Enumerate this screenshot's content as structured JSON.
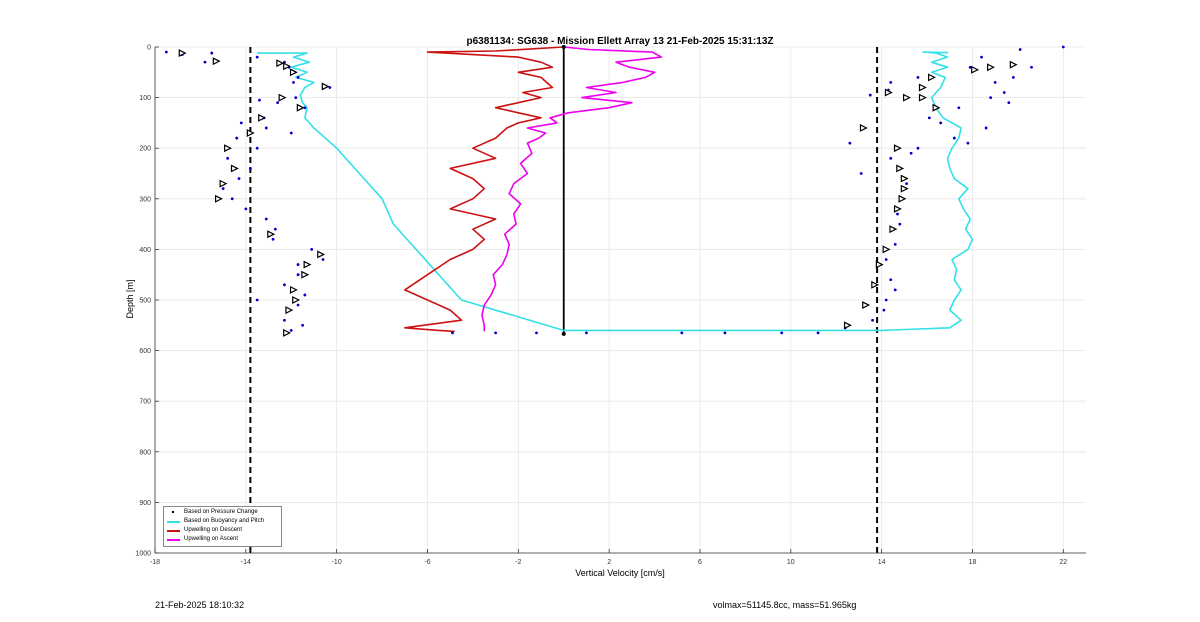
{
  "chart_data": {
    "type": "scatter",
    "title": "p6381134: SG638 - Mission Ellett Array 13 21-Feb-2025 15:31:13Z",
    "xlabel": "Vertical Velocity [cm/s]",
    "ylabel": "Depth [m]",
    "xlim": [
      -18,
      23
    ],
    "ylim": [
      1000,
      0
    ],
    "y_reversed": true,
    "x_ticks": [
      "-18",
      "-14",
      "-10",
      "-6",
      "-2",
      "2",
      "6",
      "10",
      "14",
      "18",
      "22"
    ],
    "y_ticks": [
      "0",
      "100",
      "200",
      "300",
      "400",
      "500",
      "600",
      "700",
      "800",
      "900",
      "1000"
    ],
    "grid": true,
    "legend_position": "bottom-left",
    "reference_lines": [
      {
        "style": "dashed",
        "x": -13.8
      },
      {
        "style": "dashed",
        "x": 13.8
      },
      {
        "style": "solid",
        "x": 0,
        "y_range": [
          0,
          567
        ]
      }
    ],
    "series": [
      {
        "name": "Based on Pressure Change",
        "style": "dots",
        "color": "#0000cc",
        "x": [
          -17.5,
          -15.5,
          -16.8,
          -13.5,
          -15.8,
          -12.3,
          -12.1,
          -11.7,
          -11.9,
          -10.3,
          -11.8,
          -13.4,
          -12.6,
          -11.4,
          -13.2,
          -14.2,
          -13.1,
          -12.0,
          -14.4,
          -13.5,
          -14.8,
          -13.8,
          -14.3,
          -15.0,
          -14.6,
          -14.0,
          -13.1,
          -12.7,
          -12.8,
          -11.1,
          -10.6,
          -11.7,
          -11.7,
          -12.3,
          -11.4,
          -13.5,
          -11.7,
          -12.2,
          -12.3,
          -11.5,
          -12.0,
          -4.9,
          -3.0,
          -1.2,
          0.0,
          1.0,
          5.2,
          7.1,
          9.6,
          11.2,
          12.4,
          13.6,
          14.1,
          14.2,
          14.6,
          14.4,
          14.2,
          14.6,
          14.8,
          14.7,
          14.9,
          15.1,
          13.1,
          14.4,
          15.3,
          15.6,
          17.2,
          16.6,
          16.1,
          17.4,
          18.8,
          19.4,
          19.8,
          20.6,
          22.0,
          20.1,
          18.4,
          17.9,
          19.0,
          19.6,
          18.6,
          17.8,
          12.6,
          13.5,
          14.3,
          14.4,
          15.6
        ],
        "y": [
          10,
          12,
          15,
          20,
          30,
          30,
          40,
          60,
          70,
          80,
          100,
          105,
          110,
          120,
          140,
          150,
          160,
          170,
          180,
          200,
          220,
          240,
          260,
          280,
          300,
          320,
          340,
          360,
          380,
          400,
          420,
          430,
          450,
          470,
          490,
          500,
          510,
          520,
          540,
          550,
          560,
          565,
          565,
          565,
          565,
          565,
          565,
          565,
          565,
          565,
          555,
          540,
          520,
          500,
          480,
          460,
          420,
          390,
          350,
          330,
          300,
          270,
          250,
          220,
          210,
          200,
          180,
          150,
          140,
          120,
          100,
          90,
          60,
          40,
          0,
          5,
          20,
          40,
          70,
          110,
          160,
          190,
          190,
          95,
          85,
          70,
          60
        ]
      },
      {
        "name": "Based on Buoyancy and Pitch",
        "style": "line",
        "color": "#33e0e8",
        "x": [
          -13.5,
          -11.3,
          -11.9,
          -11.2,
          -12.0,
          -11.3,
          -11.8,
          -11.0,
          -11.4,
          -11.6,
          -11.5,
          -11.3,
          -11.4,
          -11.0,
          -10.0,
          -9.0,
          -8.0,
          -7.5,
          -6.5,
          -5.5,
          -4.5,
          0,
          6,
          10,
          14,
          17.0,
          17.5,
          17.0,
          17.2,
          17.5,
          17.2,
          17.3,
          17.1,
          17.8,
          18.0,
          17.7,
          17.9,
          17.6,
          17.4,
          17.8,
          17.2,
          17.0,
          16.9,
          17.1,
          17.4,
          17.5,
          16.7,
          16.4,
          16.2,
          16.6,
          16.8,
          16.2,
          16.9,
          16.2,
          16.9,
          16.4,
          16.4,
          16.1,
          16.9,
          16.7,
          16.8,
          15.8
        ],
        "y": [
          12,
          12,
          20,
          30,
          40,
          50,
          60,
          70,
          80,
          95,
          110,
          120,
          140,
          160,
          200,
          250,
          300,
          350,
          400,
          450,
          500,
          560,
          560,
          560,
          560,
          555,
          540,
          520,
          500,
          480,
          460,
          440,
          420,
          400,
          380,
          360,
          340,
          320,
          300,
          280,
          260,
          240,
          220,
          200,
          180,
          160,
          140,
          120,
          100,
          80,
          60,
          50,
          40,
          30,
          20,
          12,
          12,
          11,
          11,
          11,
          11,
          10
        ]
      },
      {
        "name": "Upwelling on Descent",
        "style": "line",
        "color": "#cc1111",
        "x": [
          0,
          -3,
          -6,
          -2,
          -1,
          -0.5,
          -2,
          -1,
          -0.5,
          -1.8,
          -1,
          -2,
          -3,
          -2,
          -1,
          -2,
          -2.5,
          -3,
          -4,
          -3,
          -5,
          -4,
          -3.5,
          -4,
          -5,
          -3,
          -4,
          -3.5,
          -4,
          -5,
          -6,
          -7,
          -6,
          -5,
          -4.5,
          -7,
          -5.5,
          -4.8
        ],
        "y": [
          0,
          8,
          10,
          20,
          30,
          40,
          50,
          60,
          80,
          90,
          100,
          110,
          120,
          130,
          140,
          150,
          160,
          180,
          200,
          220,
          240,
          260,
          280,
          300,
          320,
          340,
          360,
          380,
          400,
          420,
          450,
          480,
          500,
          520,
          540,
          555,
          560,
          562
        ]
      },
      {
        "name": "Upwelling on Ascent",
        "style": "line",
        "color": "#ee00ee",
        "x": [
          -3.5,
          -3.5,
          -3.6,
          -3.5,
          -3.2,
          -3.0,
          -3.1,
          -2.7,
          -2.5,
          -2.4,
          -2.6,
          -2.1,
          -2.2,
          -1.9,
          -2.4,
          -2.2,
          -1.6,
          -1.9,
          -1.4,
          -1.5,
          -1.6,
          -1.1,
          -0.8,
          -1.6,
          -0.3,
          -0.6,
          0.2,
          2.0,
          3.0,
          0.8,
          2.3,
          1.0,
          2.6,
          3.6,
          4.0,
          2.9,
          2.3,
          4.3,
          3.9,
          1.1,
          0
        ],
        "y": [
          562,
          550,
          530,
          510,
          490,
          470,
          450,
          430,
          410,
          390,
          370,
          350,
          330,
          310,
          290,
          270,
          250,
          230,
          210,
          200,
          190,
          180,
          170,
          160,
          150,
          140,
          130,
          120,
          110,
          100,
          90,
          80,
          70,
          60,
          50,
          40,
          30,
          20,
          10,
          5,
          0
        ]
      },
      {
        "style": "triangle-markers",
        "color": "#000000",
        "x": [
          -16.8,
          -15.3,
          -12.5,
          -12.2,
          -11.9,
          -10.5,
          -12.4,
          -11.6,
          -13.3,
          -13.8,
          -14.8,
          -14.5,
          -15.0,
          -15.2,
          -12.9,
          -10.7,
          -11.3,
          -11.4,
          -11.9,
          -11.8,
          -12.1,
          -12.2,
          12.5,
          13.3,
          13.7,
          13.9,
          14.2,
          14.5,
          14.7,
          14.9,
          15.0,
          15.0,
          14.8,
          14.7,
          13.2,
          15.1,
          14.3,
          15.8,
          16.2,
          18.1,
          18.8,
          19.8,
          15.8,
          16.4
        ],
        "y": [
          12,
          28,
          32,
          38,
          50,
          78,
          100,
          120,
          140,
          170,
          200,
          240,
          270,
          300,
          370,
          410,
          430,
          450,
          480,
          500,
          520,
          565,
          550,
          510,
          470,
          430,
          400,
          360,
          320,
          300,
          280,
          260,
          240,
          200,
          160,
          100,
          90,
          80,
          60,
          45,
          40,
          35,
          100,
          120
        ]
      }
    ]
  },
  "footer": {
    "left": "21-Feb-2025 18:10:32",
    "right": "volmax=51145.8cc, mass=51.965kg"
  }
}
